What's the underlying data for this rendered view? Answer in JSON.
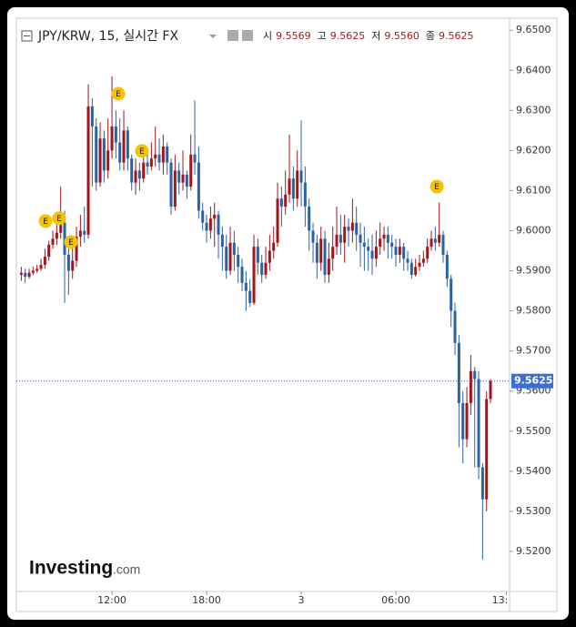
{
  "header": {
    "title": "JPY/KRW, 15, 실시간 FX",
    "ohlc": [
      {
        "label": "시",
        "value": "9.5569"
      },
      {
        "label": "고",
        "value": "9.5625"
      },
      {
        "label": "저",
        "value": "9.5560"
      },
      {
        "label": "종",
        "value": "9.5625"
      }
    ]
  },
  "logo": {
    "name": "Investing",
    "suffix": ".com"
  },
  "chart_data": {
    "type": "candlestick",
    "up_color": "#a3151b",
    "down_color": "#2a62a6",
    "xlim": [
      -18.06,
      13.21
    ],
    "ylim": [
      9.51,
      9.653
    ],
    "xticks": [
      {
        "value": -12,
        "label": "12:00"
      },
      {
        "value": -6,
        "label": "18:00"
      },
      {
        "value": 0,
        "label": "3"
      },
      {
        "value": 6,
        "label": "06:00"
      },
      {
        "value": 13,
        "label": "13:"
      }
    ],
    "yticks": [
      {
        "value": 9.52,
        "label": "9.5200"
      },
      {
        "value": 9.53,
        "label": "9.5300"
      },
      {
        "value": 9.54,
        "label": "9.5400"
      },
      {
        "value": 9.55,
        "label": "9.5500"
      },
      {
        "value": 9.56,
        "label": "9.5600"
      },
      {
        "value": 9.57,
        "label": "9.5700"
      },
      {
        "value": 9.58,
        "label": "9.5800"
      },
      {
        "value": 9.59,
        "label": "9.5900"
      },
      {
        "value": 9.6,
        "label": "9.6000"
      },
      {
        "value": 9.61,
        "label": "9.6100"
      },
      {
        "value": 9.62,
        "label": "9.6200"
      },
      {
        "value": 9.63,
        "label": "9.6300"
      },
      {
        "value": 9.64,
        "label": "9.6400"
      },
      {
        "value": 9.65,
        "label": "9.6500"
      }
    ],
    "last_price": 9.5625,
    "events": [
      {
        "x": -16.21,
        "y": 9.6024,
        "label": "E"
      },
      {
        "x": -15.35,
        "y": 9.6031,
        "label": "E"
      },
      {
        "x": -14.6,
        "y": 9.5972,
        "label": "E"
      },
      {
        "x": -11.6,
        "y": 9.6342,
        "label": "E"
      },
      {
        "x": -10.1,
        "y": 9.6199,
        "label": "E"
      },
      {
        "x": 8.6,
        "y": 9.611,
        "label": "E"
      }
    ],
    "x": [
      -17.75,
      -17.5,
      -17.25,
      -17,
      -16.75,
      -16.5,
      -16.25,
      -16,
      -15.75,
      -15.5,
      -15.25,
      -15,
      -14.75,
      -14.5,
      -14.25,
      -14,
      -13.75,
      -13.5,
      -13.25,
      -13,
      -12.75,
      -12.5,
      -12.25,
      -12,
      -11.75,
      -11.5,
      -11.25,
      -11,
      -10.75,
      -10.5,
      -10.25,
      -10,
      -9.75,
      -9.5,
      -9.25,
      -9,
      -8.75,
      -8.5,
      -8.25,
      -8,
      -7.75,
      -7.5,
      -7.25,
      -7,
      -6.75,
      -6.5,
      -6.25,
      -6,
      -5.75,
      -5.5,
      -5.25,
      -5,
      -4.75,
      -4.5,
      -4.25,
      -4,
      -3.75,
      -3.5,
      -3.25,
      -3,
      -2.75,
      -2.5,
      -2.25,
      -2,
      -1.75,
      -1.5,
      -1.25,
      -1,
      -0.75,
      -0.5,
      -0.25,
      0,
      0.25,
      0.5,
      0.75,
      1,
      1.25,
      1.5,
      1.75,
      2,
      2.25,
      2.5,
      2.75,
      3,
      3.25,
      3.5,
      3.75,
      4,
      4.25,
      4.5,
      4.75,
      5,
      5.25,
      5.5,
      5.75,
      6,
      6.25,
      6.5,
      6.75,
      7,
      7.25,
      7.5,
      7.75,
      8,
      8.25,
      8.5,
      8.75,
      9,
      9.25,
      9.5,
      9.75,
      10,
      10.25,
      10.5,
      10.75,
      11,
      11.25,
      11.5,
      11.75,
      12
    ],
    "open": [
      9.589,
      9.5895,
      9.5885,
      9.5895,
      9.59,
      9.5905,
      9.5915,
      9.5935,
      9.5965,
      9.598,
      9.5995,
      9.602,
      9.594,
      9.59,
      9.5925,
      9.5985,
      9.6,
      9.599,
      9.631,
      9.626,
      9.612,
      9.623,
      9.615,
      9.62,
      9.626,
      9.622,
      9.617,
      9.625,
      9.618,
      9.612,
      9.615,
      9.613,
      9.617,
      9.616,
      9.618,
      9.619,
      9.617,
      9.621,
      9.617,
      9.606,
      9.615,
      9.612,
      9.614,
      9.611,
      9.619,
      9.617,
      9.605,
      9.602,
      9.6,
      9.603,
      9.604,
      9.599,
      9.596,
      9.59,
      9.597,
      9.594,
      9.591,
      9.587,
      9.585,
      9.582,
      9.596,
      9.592,
      9.589,
      9.592,
      9.595,
      9.597,
      9.608,
      9.606,
      9.609,
      9.613,
      9.608,
      9.615,
      9.612,
      9.606,
      9.6,
      9.597,
      9.592,
      9.598,
      9.589,
      9.593,
      9.596,
      9.599,
      9.597,
      9.601,
      9.6,
      9.602,
      9.599,
      9.597,
      9.596,
      9.595,
      9.593,
      9.596,
      9.598,
      9.599,
      9.597,
      9.596,
      9.594,
      9.596,
      9.593,
      9.592,
      9.589,
      9.591,
      9.592,
      9.593,
      9.596,
      9.598,
      9.597,
      9.599,
      9.594,
      9.588,
      9.58,
      9.572,
      9.557,
      9.548,
      9.557,
      9.565,
      9.563,
      9.541,
      9.533,
      9.558
    ],
    "high": [
      9.591,
      9.5905,
      9.5905,
      9.591,
      9.5915,
      9.593,
      9.5955,
      9.5975,
      9.6,
      9.603,
      9.611,
      9.605,
      9.596,
      9.598,
      9.601,
      9.604,
      9.606,
      9.6365,
      9.633,
      9.628,
      9.627,
      9.625,
      9.628,
      9.6385,
      9.63,
      9.628,
      9.63,
      9.626,
      9.619,
      9.618,
      9.617,
      9.62,
      9.619,
      9.622,
      9.626,
      9.623,
      9.624,
      9.622,
      9.618,
      9.619,
      9.617,
      9.62,
      9.615,
      9.624,
      9.6325,
      9.621,
      9.607,
      9.604,
      9.606,
      9.607,
      9.605,
      9.601,
      9.599,
      9.601,
      9.6,
      9.596,
      9.593,
      9.59,
      9.588,
      9.599,
      9.598,
      9.594,
      9.596,
      9.599,
      9.601,
      9.612,
      9.611,
      9.615,
      9.624,
      9.616,
      9.62,
      9.6275,
      9.616,
      9.608,
      9.602,
      9.599,
      9.601,
      9.6,
      9.597,
      9.601,
      9.606,
      9.604,
      9.604,
      9.603,
      9.608,
      9.606,
      9.602,
      9.601,
      9.598,
      9.599,
      9.6,
      9.602,
      9.601,
      9.601,
      9.599,
      9.598,
      9.598,
      9.597,
      9.595,
      9.593,
      9.593,
      9.594,
      9.595,
      9.598,
      9.6,
      9.601,
      9.607,
      9.6,
      9.595,
      9.589,
      9.582,
      9.574,
      9.56,
      9.561,
      9.569,
      9.566,
      9.565,
      9.542,
      9.56,
      9.563
    ],
    "low": [
      9.5875,
      9.587,
      9.588,
      9.589,
      9.5895,
      9.59,
      9.5905,
      9.5925,
      9.5955,
      9.5965,
      9.598,
      9.582,
      9.584,
      9.588,
      9.591,
      9.596,
      9.597,
      9.598,
      9.611,
      9.61,
      9.611,
      9.612,
      9.613,
      9.618,
      9.618,
      9.615,
      9.615,
      9.615,
      9.61,
      9.609,
      9.61,
      9.612,
      9.614,
      9.615,
      9.616,
      9.615,
      9.614,
      9.614,
      9.604,
      9.605,
      9.609,
      9.61,
      9.608,
      9.61,
      9.614,
      9.603,
      9.6,
      9.597,
      9.598,
      9.596,
      9.593,
      9.59,
      9.588,
      9.589,
      9.59,
      9.587,
      9.585,
      9.58,
      9.581,
      9.5815,
      9.589,
      9.587,
      9.588,
      9.59,
      9.593,
      9.596,
      9.601,
      9.604,
      9.607,
      9.605,
      9.606,
      9.606,
      9.601,
      9.595,
      9.592,
      9.588,
      9.59,
      9.587,
      9.587,
      9.59,
      9.594,
      9.594,
      9.592,
      9.596,
      9.597,
      9.595,
      9.591,
      9.59,
      9.59,
      9.589,
      9.591,
      9.594,
      9.595,
      9.593,
      9.593,
      9.591,
      9.592,
      9.59,
      9.59,
      9.588,
      9.5885,
      9.59,
      9.591,
      9.592,
      9.595,
      9.595,
      9.596,
      9.592,
      9.586,
      9.576,
      9.569,
      9.546,
      9.542,
      9.546,
      9.554,
      9.541,
      9.538,
      9.518,
      9.53,
      9.557
    ],
    "close": [
      9.5895,
      9.5885,
      9.5895,
      9.59,
      9.5905,
      9.5915,
      9.5935,
      9.5965,
      9.598,
      9.5995,
      9.602,
      9.594,
      9.59,
      9.5925,
      9.5985,
      9.6,
      9.599,
      9.631,
      9.626,
      9.612,
      9.623,
      9.615,
      9.62,
      9.626,
      9.622,
      9.617,
      9.625,
      9.618,
      9.612,
      9.615,
      9.613,
      9.617,
      9.616,
      9.618,
      9.619,
      9.617,
      9.621,
      9.617,
      9.606,
      9.615,
      9.612,
      9.614,
      9.611,
      9.619,
      9.617,
      9.605,
      9.602,
      9.6,
      9.603,
      9.604,
      9.599,
      9.596,
      9.59,
      9.597,
      9.594,
      9.591,
      9.587,
      9.585,
      9.582,
      9.596,
      9.592,
      9.589,
      9.592,
      9.595,
      9.597,
      9.608,
      9.606,
      9.609,
      9.613,
      9.608,
      9.615,
      9.612,
      9.606,
      9.6,
      9.597,
      9.592,
      9.598,
      9.589,
      9.593,
      9.596,
      9.599,
      9.597,
      9.601,
      9.6,
      9.602,
      9.599,
      9.597,
      9.596,
      9.595,
      9.593,
      9.596,
      9.598,
      9.599,
      9.597,
      9.596,
      9.594,
      9.596,
      9.593,
      9.592,
      9.589,
      9.591,
      9.592,
      9.593,
      9.596,
      9.598,
      9.597,
      9.599,
      9.594,
      9.588,
      9.58,
      9.572,
      9.557,
      9.548,
      9.557,
      9.565,
      9.563,
      9.541,
      9.533,
      9.558,
      9.5625
    ]
  }
}
